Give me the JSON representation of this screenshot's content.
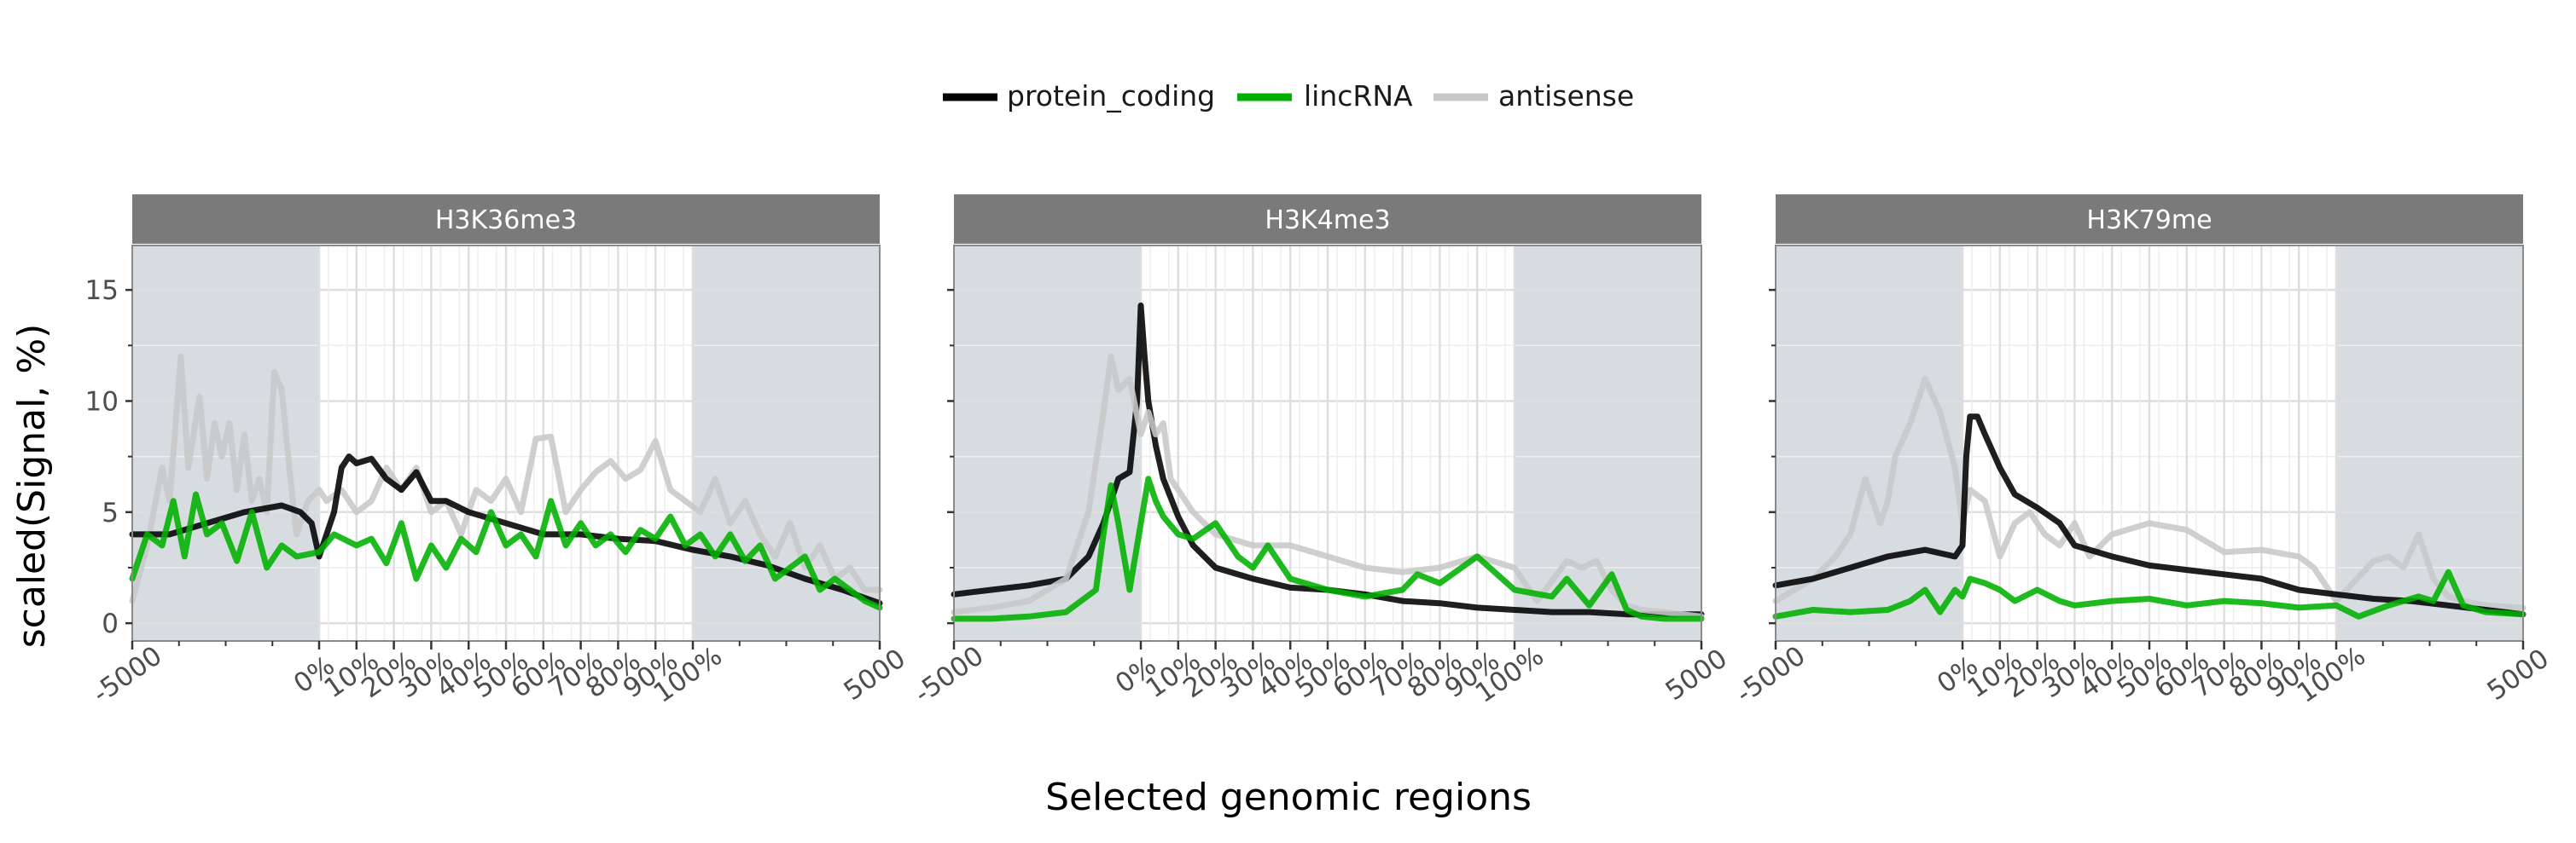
{
  "xlabel": "Selected genomic regions",
  "ylabel": "scaled(Signal, %)",
  "legend": [
    {
      "label": "protein_coding",
      "color": "#000000"
    },
    {
      "label": "lincRNA",
      "color": "#00b000"
    },
    {
      "label": "antisense",
      "color": "#c8c8c8"
    }
  ],
  "chart_data": {
    "type": "line",
    "xlabel": "Selected genomic regions",
    "ylabel": "scaled(Signal, %)",
    "ylim": [
      -0.8,
      17
    ],
    "y_ticks": [
      0,
      5,
      10,
      15
    ],
    "x_ticks": [
      "-5000",
      "0%",
      "10%",
      "20%",
      "30%",
      "40%",
      "50%",
      "60%",
      "70%",
      "80%",
      "90%",
      "100%",
      "5000"
    ],
    "grid": true,
    "legend_position": "top",
    "shaded_regions": [
      "upstream (-5000 to 0%)",
      "downstream (100% to 5000)"
    ],
    "x_note": "x expressed as fraction of panel width: 0-0.25 upstream (-5000..0%), 0.25-0.75 gene body (0%..100%), 0.75-1 downstream (100%..5000)",
    "colors": {
      "protein_coding": "#000000",
      "lincRNA": "#00b000",
      "antisense": "#c8c8c8",
      "flank_shade": "#d7dce0",
      "strip": "#7a7a7a"
    },
    "panels": [
      {
        "title": "H3K36me3",
        "series": [
          {
            "name": "antisense",
            "color": "#c8c8c8",
            "x": [
              0,
              0.02,
              0.04,
              0.05,
              0.065,
              0.075,
              0.09,
              0.1,
              0.11,
              0.12,
              0.13,
              0.14,
              0.15,
              0.16,
              0.17,
              0.18,
              0.19,
              0.2,
              0.21,
              0.22,
              0.235,
              0.25,
              0.26,
              0.28,
              0.3,
              0.32,
              0.34,
              0.36,
              0.38,
              0.4,
              0.42,
              0.44,
              0.46,
              0.48,
              0.5,
              0.52,
              0.54,
              0.56,
              0.58,
              0.6,
              0.62,
              0.64,
              0.66,
              0.68,
              0.7,
              0.72,
              0.74,
              0.76,
              0.78,
              0.8,
              0.82,
              0.84,
              0.86,
              0.88,
              0.9,
              0.92,
              0.94,
              0.96,
              0.98,
              1.0
            ],
            "y": [
              1.0,
              3.5,
              7.0,
              5.5,
              12.0,
              7.0,
              10.2,
              6.5,
              9.0,
              7.5,
              9.0,
              6.0,
              8.5,
              5.5,
              6.5,
              5.0,
              11.3,
              10.5,
              7.0,
              4.0,
              5.5,
              6.0,
              5.5,
              6.0,
              5.0,
              5.5,
              7.0,
              6.0,
              7.0,
              5.0,
              5.5,
              4.0,
              6.0,
              5.5,
              6.5,
              5.0,
              8.3,
              8.4,
              5.0,
              6.0,
              6.8,
              7.3,
              6.5,
              6.9,
              8.2,
              6.0,
              5.5,
              5.0,
              6.5,
              4.5,
              5.5,
              4.0,
              3.0,
              4.5,
              2.5,
              3.5,
              2.0,
              2.5,
              1.5,
              1.5
            ]
          },
          {
            "name": "protein_coding",
            "color": "#000000",
            "x": [
              0,
              0.05,
              0.1,
              0.15,
              0.2,
              0.225,
              0.24,
              0.25,
              0.27,
              0.28,
              0.29,
              0.3,
              0.32,
              0.34,
              0.36,
              0.38,
              0.4,
              0.42,
              0.45,
              0.5,
              0.55,
              0.6,
              0.65,
              0.7,
              0.75,
              0.8,
              0.85,
              0.9,
              0.95,
              1.0
            ],
            "y": [
              4.0,
              4.0,
              4.5,
              5.0,
              5.3,
              5.0,
              4.5,
              3.0,
              5.0,
              7.0,
              7.5,
              7.2,
              7.4,
              6.5,
              6.0,
              6.8,
              5.5,
              5.5,
              5.0,
              4.5,
              4.0,
              4.0,
              3.8,
              3.7,
              3.3,
              3.0,
              2.6,
              2.0,
              1.5,
              0.9
            ]
          },
          {
            "name": "lincRNA",
            "color": "#00b000",
            "x": [
              0,
              0.02,
              0.04,
              0.055,
              0.07,
              0.085,
              0.1,
              0.12,
              0.14,
              0.16,
              0.18,
              0.2,
              0.22,
              0.25,
              0.27,
              0.3,
              0.32,
              0.34,
              0.36,
              0.38,
              0.4,
              0.42,
              0.44,
              0.46,
              0.48,
              0.5,
              0.52,
              0.54,
              0.56,
              0.58,
              0.6,
              0.62,
              0.64,
              0.66,
              0.68,
              0.7,
              0.72,
              0.74,
              0.76,
              0.78,
              0.8,
              0.82,
              0.84,
              0.86,
              0.88,
              0.9,
              0.92,
              0.94,
              0.96,
              0.98,
              1.0
            ],
            "y": [
              2.0,
              4.0,
              3.5,
              5.5,
              3.0,
              5.8,
              4.0,
              4.5,
              2.8,
              5.0,
              2.5,
              3.5,
              3.0,
              3.2,
              4.0,
              3.5,
              3.8,
              2.7,
              4.5,
              2.0,
              3.5,
              2.5,
              3.8,
              3.2,
              5.0,
              3.5,
              4.0,
              3.0,
              5.5,
              3.5,
              4.5,
              3.5,
              4.0,
              3.2,
              4.2,
              3.8,
              4.8,
              3.5,
              4.0,
              3.0,
              4.0,
              2.8,
              3.5,
              2.0,
              2.5,
              3.0,
              1.5,
              2.0,
              1.5,
              1.0,
              0.7
            ]
          }
        ]
      },
      {
        "title": "H3K4me3",
        "series": [
          {
            "name": "protein_coding",
            "color": "#000000",
            "x": [
              0,
              0.05,
              0.1,
              0.15,
              0.18,
              0.2,
              0.22,
              0.235,
              0.245,
              0.25,
              0.255,
              0.26,
              0.27,
              0.28,
              0.3,
              0.32,
              0.35,
              0.4,
              0.45,
              0.5,
              0.55,
              0.6,
              0.65,
              0.7,
              0.75,
              0.8,
              0.85,
              0.9,
              0.95,
              1.0
            ],
            "y": [
              1.3,
              1.5,
              1.7,
              2.0,
              3.0,
              4.5,
              6.5,
              6.8,
              10.0,
              14.3,
              12.0,
              10.0,
              8.0,
              6.5,
              4.8,
              3.5,
              2.5,
              2.0,
              1.6,
              1.5,
              1.3,
              1.0,
              0.9,
              0.7,
              0.6,
              0.5,
              0.5,
              0.4,
              0.4,
              0.4
            ]
          },
          {
            "name": "antisense",
            "color": "#c8c8c8",
            "x": [
              0,
              0.05,
              0.1,
              0.15,
              0.18,
              0.2,
              0.21,
              0.22,
              0.235,
              0.25,
              0.26,
              0.27,
              0.28,
              0.29,
              0.3,
              0.32,
              0.35,
              0.4,
              0.45,
              0.5,
              0.55,
              0.6,
              0.65,
              0.7,
              0.75,
              0.78,
              0.82,
              0.84,
              0.86,
              0.88,
              0.9,
              0.92,
              0.95,
              1.0
            ],
            "y": [
              0.5,
              0.7,
              1.0,
              2.0,
              5.0,
              9.5,
              12.0,
              10.5,
              11.0,
              8.5,
              9.5,
              8.5,
              9.0,
              6.5,
              6.0,
              5.0,
              4.0,
              3.5,
              3.5,
              3.0,
              2.5,
              2.3,
              2.5,
              3.0,
              2.5,
              1.0,
              2.8,
              2.5,
              2.8,
              1.5,
              0.8,
              0.6,
              0.5,
              0.3
            ]
          },
          {
            "name": "lincRNA",
            "color": "#00b000",
            "x": [
              0,
              0.05,
              0.1,
              0.15,
              0.19,
              0.2,
              0.21,
              0.22,
              0.235,
              0.25,
              0.26,
              0.27,
              0.28,
              0.3,
              0.32,
              0.35,
              0.38,
              0.4,
              0.42,
              0.45,
              0.5,
              0.55,
              0.6,
              0.62,
              0.65,
              0.7,
              0.75,
              0.8,
              0.82,
              0.85,
              0.88,
              0.9,
              0.92,
              0.95,
              1.0
            ],
            "y": [
              0.2,
              0.2,
              0.3,
              0.5,
              1.5,
              4.0,
              6.2,
              4.5,
              1.5,
              4.5,
              6.5,
              5.5,
              4.8,
              4.0,
              3.8,
              4.5,
              3.0,
              2.5,
              3.5,
              2.0,
              1.5,
              1.2,
              1.5,
              2.2,
              1.8,
              3.0,
              1.5,
              1.2,
              2.0,
              0.8,
              2.2,
              0.6,
              0.3,
              0.2,
              0.2
            ]
          }
        ]
      },
      {
        "title": "H3K79me",
        "series": [
          {
            "name": "antisense",
            "color": "#c8c8c8",
            "x": [
              0,
              0.05,
              0.08,
              0.1,
              0.12,
              0.14,
              0.15,
              0.16,
              0.18,
              0.2,
              0.22,
              0.24,
              0.25,
              0.26,
              0.28,
              0.3,
              0.32,
              0.34,
              0.36,
              0.38,
              0.4,
              0.42,
              0.45,
              0.5,
              0.55,
              0.6,
              0.65,
              0.7,
              0.72,
              0.75,
              0.8,
              0.82,
              0.84,
              0.86,
              0.88,
              0.9,
              0.92,
              0.95,
              1.0
            ],
            "y": [
              1.0,
              2.0,
              3.0,
              4.0,
              6.5,
              4.5,
              5.5,
              7.5,
              9.0,
              11.0,
              9.5,
              7.0,
              4.5,
              6.0,
              5.5,
              3.0,
              4.5,
              5.0,
              4.0,
              3.5,
              4.5,
              3.0,
              4.0,
              4.5,
              4.2,
              3.2,
              3.3,
              3.0,
              2.5,
              1.0,
              2.8,
              3.0,
              2.5,
              4.0,
              2.0,
              1.2,
              1.0,
              0.8,
              0.7
            ]
          },
          {
            "name": "protein_coding",
            "color": "#000000",
            "x": [
              0,
              0.05,
              0.1,
              0.15,
              0.2,
              0.24,
              0.25,
              0.255,
              0.26,
              0.27,
              0.28,
              0.3,
              0.32,
              0.35,
              0.38,
              0.4,
              0.45,
              0.5,
              0.55,
              0.6,
              0.65,
              0.7,
              0.75,
              0.8,
              0.85,
              0.9,
              0.95,
              1.0
            ],
            "y": [
              1.7,
              2.0,
              2.5,
              3.0,
              3.3,
              3.0,
              3.5,
              7.5,
              9.3,
              9.3,
              8.5,
              7.0,
              5.8,
              5.2,
              4.5,
              3.5,
              3.0,
              2.6,
              2.4,
              2.2,
              2.0,
              1.5,
              1.3,
              1.1,
              1.0,
              0.8,
              0.6,
              0.4
            ]
          },
          {
            "name": "lincRNA",
            "color": "#00b000",
            "x": [
              0,
              0.05,
              0.1,
              0.15,
              0.18,
              0.2,
              0.22,
              0.24,
              0.25,
              0.26,
              0.28,
              0.3,
              0.32,
              0.35,
              0.38,
              0.4,
              0.45,
              0.5,
              0.55,
              0.6,
              0.65,
              0.7,
              0.75,
              0.78,
              0.82,
              0.84,
              0.86,
              0.88,
              0.9,
              0.92,
              0.95,
              1.0
            ],
            "y": [
              0.3,
              0.6,
              0.5,
              0.6,
              1.0,
              1.5,
              0.5,
              1.5,
              1.2,
              2.0,
              1.8,
              1.5,
              1.0,
              1.5,
              1.0,
              0.8,
              1.0,
              1.1,
              0.8,
              1.0,
              0.9,
              0.7,
              0.8,
              0.3,
              0.8,
              1.0,
              1.2,
              1.0,
              2.3,
              0.8,
              0.5,
              0.4
            ]
          }
        ]
      }
    ]
  }
}
